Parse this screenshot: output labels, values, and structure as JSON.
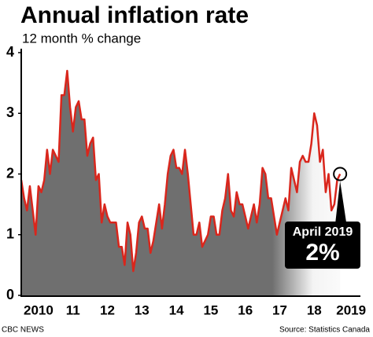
{
  "chart_data": {
    "type": "area",
    "title": "Annual inflation rate",
    "subtitle": "12 month % change",
    "categories": [
      null,
      null,
      null,
      null,
      null,
      null,
      "2010",
      null,
      null,
      null,
      null,
      null,
      null,
      null,
      null,
      null,
      null,
      null,
      "11",
      null,
      null,
      null,
      null,
      null,
      null,
      null,
      null,
      null,
      null,
      null,
      "12",
      null,
      null,
      null,
      null,
      null,
      null,
      null,
      null,
      null,
      null,
      null,
      "13",
      null,
      null,
      null,
      null,
      null,
      null,
      null,
      null,
      null,
      null,
      null,
      "14",
      null,
      null,
      null,
      null,
      null,
      null,
      null,
      null,
      null,
      null,
      null,
      "15",
      null,
      null,
      null,
      null,
      null,
      null,
      null,
      null,
      null,
      null,
      null,
      "16",
      null,
      null,
      null,
      null,
      null,
      null,
      null,
      null,
      null,
      null,
      null,
      "17",
      null,
      null,
      null,
      null,
      null,
      null,
      null,
      null,
      null,
      null,
      null,
      "18",
      null,
      null,
      null,
      null,
      null,
      null,
      null,
      null,
      "2019"
    ],
    "values": [
      1.9,
      1.6,
      1.4,
      1.8,
      1.4,
      1.0,
      1.8,
      1.7,
      1.9,
      2.4,
      2.0,
      2.4,
      2.3,
      2.2,
      3.3,
      3.3,
      3.7,
      3.1,
      2.7,
      3.1,
      3.2,
      2.9,
      2.9,
      2.3,
      2.5,
      2.6,
      1.9,
      2.0,
      1.2,
      1.5,
      1.3,
      1.2,
      1.2,
      1.2,
      0.8,
      0.8,
      0.5,
      1.2,
      1.0,
      0.4,
      0.7,
      1.2,
      1.3,
      1.1,
      1.1,
      0.7,
      0.9,
      1.2,
      1.5,
      1.1,
      1.5,
      2.0,
      2.3,
      2.4,
      2.1,
      2.1,
      2.0,
      2.4,
      2.0,
      1.5,
      1.0,
      1.0,
      1.2,
      0.8,
      0.9,
      1.0,
      1.3,
      1.3,
      1.0,
      1.0,
      1.4,
      1.6,
      2.0,
      1.4,
      1.3,
      1.7,
      1.5,
      1.5,
      1.3,
      1.1,
      1.3,
      1.5,
      1.2,
      1.5,
      2.1,
      2.0,
      1.6,
      1.6,
      1.3,
      1.0,
      1.2,
      1.4,
      1.6,
      1.4,
      2.1,
      1.9,
      1.7,
      2.2,
      2.3,
      2.2,
      2.2,
      2.5,
      3.0,
      2.8,
      2.2,
      2.4,
      1.7,
      2.0,
      1.4,
      1.5,
      1.9,
      2.0
    ],
    "color": "#d9261c",
    "fill": "#6f6f6f",
    "ylim": [
      0,
      4
    ],
    "yticks": [
      0,
      1,
      2,
      3,
      4
    ],
    "annotation": {
      "text": "April 2019",
      "value_label": "2%"
    },
    "source": "Source: Statistics Canada",
    "credit": "CBC NEWS"
  }
}
